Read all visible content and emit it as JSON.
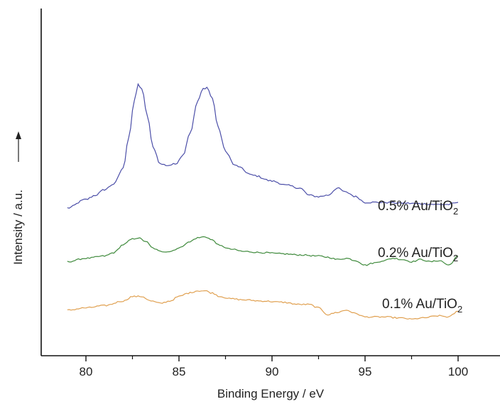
{
  "chart_data": {
    "type": "line",
    "xlabel": "Binding Energy / eV",
    "ylabel": "Intensity / a.u.",
    "xlim": [
      77.5,
      102
    ],
    "xticks": [
      80,
      85,
      90,
      95,
      100
    ],
    "y_ticks_shown": false,
    "grid": false,
    "series": [
      {
        "name": "0.5% Au/TiO",
        "name_subscript": "2",
        "color": "#4b4ea8",
        "x": [
          79,
          80,
          80.5,
          81,
          81.5,
          82,
          82.3,
          82.6,
          82.8,
          83.0,
          83.3,
          83.6,
          84.0,
          84.4,
          84.8,
          85.2,
          85.6,
          86.0,
          86.3,
          86.5,
          86.8,
          87.1,
          87.5,
          88,
          89,
          90,
          90.8,
          91.5,
          92,
          92.5,
          93,
          93.5,
          94,
          94.5,
          95,
          96,
          97,
          98,
          99,
          99.5,
          100
        ],
        "y": [
          0.05,
          0.11,
          0.14,
          0.18,
          0.22,
          0.33,
          0.55,
          0.8,
          0.92,
          0.89,
          0.7,
          0.48,
          0.36,
          0.35,
          0.36,
          0.42,
          0.58,
          0.8,
          0.89,
          0.9,
          0.82,
          0.62,
          0.45,
          0.35,
          0.28,
          0.24,
          0.21,
          0.19,
          0.14,
          0.13,
          0.14,
          0.19,
          0.16,
          0.13,
          0.09,
          0.09,
          0.085,
          0.08,
          0.075,
          0.075,
          0.09
        ]
      },
      {
        "name": "0.2% Au/TiO",
        "name_subscript": "2",
        "color": "#3f8a3c",
        "x": [
          79,
          80,
          81,
          81.5,
          82,
          82.5,
          82.8,
          83.2,
          83.6,
          84,
          84.5,
          85,
          85.5,
          86,
          86.4,
          86.8,
          87.2,
          87.8,
          88.5,
          89.5,
          90.5,
          91.5,
          92.5,
          93,
          93.5,
          94,
          94.5,
          95,
          95.5,
          96,
          96.5,
          97,
          97.5,
          98,
          98.5,
          99,
          99.5,
          100
        ],
        "y": [
          -0.06,
          -0.03,
          -0.01,
          0.02,
          0.09,
          0.14,
          0.15,
          0.12,
          0.06,
          0.03,
          0.03,
          0.06,
          0.11,
          0.15,
          0.16,
          0.13,
          0.08,
          0.05,
          0.03,
          0.02,
          0.01,
          0.0,
          -0.01,
          -0.02,
          -0.04,
          -0.03,
          -0.05,
          -0.09,
          -0.07,
          -0.05,
          -0.03,
          -0.04,
          -0.06,
          -0.04,
          -0.06,
          -0.05,
          -0.09,
          -0.01
        ]
      },
      {
        "name": "0.1% Au/TiO",
        "name_subscript": "2",
        "color": "#e0a050",
        "x": [
          79,
          80,
          81,
          82,
          82.5,
          83,
          83.5,
          84,
          84.5,
          85,
          85.5,
          86,
          86.4,
          86.8,
          87.2,
          87.8,
          88.5,
          89.5,
          90.5,
          91.5,
          92,
          92.5,
          93,
          93.5,
          94,
          94.5,
          95,
          96,
          97,
          97.5,
          98,
          99,
          99.5,
          100
        ],
        "y": [
          -0.18,
          -0.16,
          -0.14,
          -0.1,
          -0.06,
          -0.06,
          -0.1,
          -0.12,
          -0.1,
          -0.06,
          -0.03,
          -0.01,
          -0.01,
          -0.03,
          -0.06,
          -0.08,
          -0.09,
          -0.1,
          -0.11,
          -0.13,
          -0.13,
          -0.16,
          -0.22,
          -0.2,
          -0.18,
          -0.21,
          -0.24,
          -0.24,
          -0.25,
          -0.26,
          -0.25,
          -0.23,
          -0.24,
          -0.19
        ]
      }
    ]
  }
}
